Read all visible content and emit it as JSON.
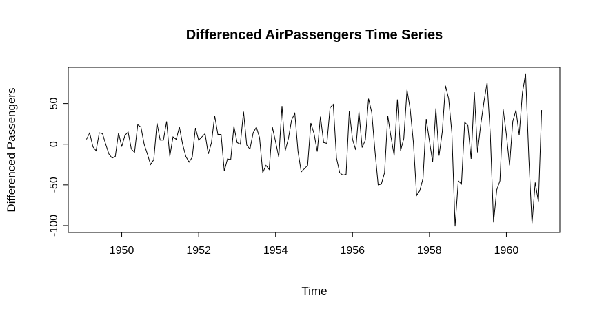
{
  "chart_data": {
    "type": "line",
    "title": "Differenced AirPassengers Time Series",
    "xlabel": "Time",
    "ylabel": "Differenced Passengers",
    "x_start": 1949.0833333,
    "x_step": 0.0833333,
    "values": [
      6,
      14,
      -3,
      -8,
      14,
      13,
      0,
      -12,
      -17,
      -15,
      14,
      -3,
      11,
      15,
      -6,
      -10,
      24,
      21,
      0,
      -12,
      -25,
      -19,
      26,
      5,
      5,
      28,
      -15,
      9,
      6,
      21,
      0,
      -15,
      -22,
      -16,
      20,
      5,
      9,
      13,
      -12,
      2,
      35,
      12,
      12,
      -33,
      -18,
      -19,
      22,
      2,
      0,
      40,
      -1,
      -6,
      14,
      21,
      8,
      -35,
      -26,
      -31,
      21,
      3,
      -16,
      47,
      -8,
      7,
      30,
      38,
      -9,
      -34,
      -30,
      -26,
      26,
      13,
      -9,
      34,
      2,
      1,
      45,
      49,
      -17,
      -35,
      -38,
      -37,
      41,
      6,
      -7,
      40,
      -4,
      5,
      56,
      39,
      -8,
      -50,
      -49,
      -35,
      35,
      9,
      -14,
      55,
      -8,
      7,
      67,
      43,
      2,
      -63,
      -57,
      -42,
      31,
      4,
      -22,
      44,
      -14,
      15,
      72,
      56,
      14,
      -101,
      -45,
      -49,
      27,
      23,
      -18,
      64,
      -10,
      24,
      52,
      76,
      11,
      -96,
      -56,
      -45,
      43,
      12,
      -26,
      28,
      42,
      11,
      63,
      87,
      -16,
      -98,
      -47,
      -71,
      42
    ],
    "xlim": [
      1948.61,
      1961.39
    ],
    "ylim": [
      -108.5,
      94.5
    ],
    "xticks": [
      1950,
      1952,
      1954,
      1956,
      1958,
      1960
    ],
    "yticks": [
      -100,
      -50,
      0,
      50
    ],
    "xtick_labels": [
      "1950",
      "1952",
      "1954",
      "1956",
      "1958",
      "1960"
    ],
    "ytick_labels": [
      "-100",
      "-50",
      "0",
      "50"
    ],
    "grid": false,
    "line_color": "#000000"
  }
}
